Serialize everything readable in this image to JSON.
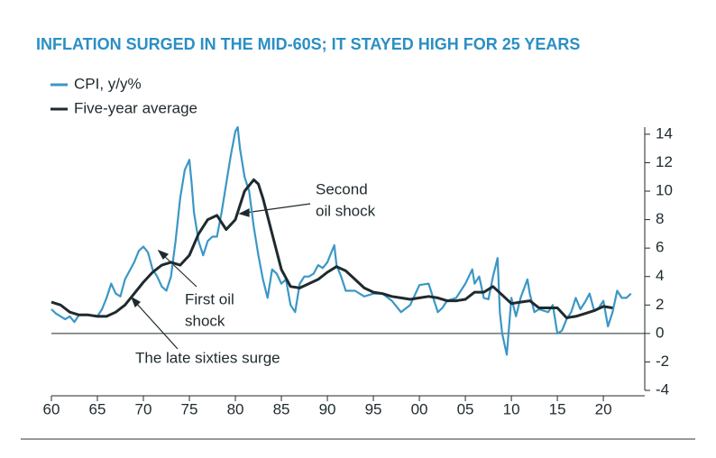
{
  "chart_data": {
    "type": "line",
    "title": "INFLATION SURGED IN THE MID-60S; IT STAYED HIGH FOR 25 YEARS",
    "xlim": [
      1960,
      2024.5
    ],
    "ylim": [
      -4,
      14.5
    ],
    "xticks": [
      {
        "value": 1960,
        "label": "60"
      },
      {
        "value": 1965,
        "label": "65"
      },
      {
        "value": 1970,
        "label": "70"
      },
      {
        "value": 1975,
        "label": "75"
      },
      {
        "value": 1980,
        "label": "80"
      },
      {
        "value": 1985,
        "label": "85"
      },
      {
        "value": 1990,
        "label": "90"
      },
      {
        "value": 1995,
        "label": "95"
      },
      {
        "value": 2000,
        "label": "00"
      },
      {
        "value": 2005,
        "label": "05"
      },
      {
        "value": 2010,
        "label": "10"
      },
      {
        "value": 2015,
        "label": "15"
      },
      {
        "value": 2020,
        "label": "20"
      }
    ],
    "yticks": [
      -4,
      -2,
      0,
      2,
      4,
      6,
      8,
      10,
      12,
      14
    ],
    "series": [
      {
        "name": "CPI, y/y%",
        "color": "#3b97c6",
        "x": [
          1960,
          1960.5,
          1961,
          1961.5,
          1962,
          1962.5,
          1963,
          1964,
          1965,
          1965.5,
          1966,
          1966.5,
          1967,
          1967.5,
          1968,
          1968.5,
          1969,
          1969.5,
          1970,
          1970.5,
          1971,
          1971.5,
          1972,
          1972.5,
          1973,
          1973.5,
          1974,
          1974.5,
          1975,
          1975.25,
          1975.5,
          1976,
          1976.5,
          1977,
          1977.5,
          1978,
          1978.5,
          1979,
          1979.5,
          1980,
          1980.25,
          1980.5,
          1981,
          1981.5,
          1982,
          1982.5,
          1983,
          1983.5,
          1984,
          1984.5,
          1985,
          1985.5,
          1986,
          1986.5,
          1987,
          1987.5,
          1988,
          1988.5,
          1989,
          1989.5,
          1990,
          1990.75,
          1991,
          1991.5,
          1992,
          1993,
          1994,
          1995,
          1996,
          1997,
          1998,
          1999,
          2000,
          2001,
          2001.5,
          2002,
          2002.5,
          2003,
          2004,
          2005,
          2005.75,
          2006,
          2006.5,
          2007,
          2007.5,
          2008,
          2008.5,
          2008.75,
          2009,
          2009.5,
          2010,
          2010.5,
          2011,
          2011.75,
          2012,
          2012.5,
          2013,
          2014,
          2014.5,
          2015,
          2015.5,
          2016,
          2016.5,
          2017,
          2017.5,
          2018,
          2018.5,
          2019,
          2019.5,
          2020,
          2020.5,
          2021,
          2021.5,
          2022,
          2022.5,
          2023
        ],
        "values": [
          1.7,
          1.4,
          1.2,
          1.0,
          1.2,
          0.8,
          1.3,
          1.3,
          1.2,
          1.7,
          2.5,
          3.5,
          2.8,
          2.6,
          3.8,
          4.4,
          5.0,
          5.8,
          6.1,
          5.7,
          4.5,
          4.0,
          3.3,
          3.0,
          4.0,
          6.5,
          9.5,
          11.5,
          12.2,
          10.5,
          8.5,
          6.5,
          5.5,
          6.5,
          6.8,
          6.8,
          8.5,
          10.5,
          12.5,
          14.2,
          14.5,
          13,
          11,
          10,
          7.5,
          5.5,
          3.8,
          2.5,
          4.5,
          4.2,
          3.5,
          3.8,
          2,
          1.5,
          3.5,
          4,
          4,
          4.2,
          4.8,
          4.6,
          5,
          6.2,
          4.8,
          4,
          3,
          3,
          2.6,
          2.8,
          2.8,
          2.3,
          1.5,
          2,
          3.4,
          3.5,
          2.5,
          1.5,
          1.8,
          2.3,
          2.5,
          3.5,
          4.5,
          3.5,
          4,
          2.5,
          2.4,
          4,
          5.3,
          1.5,
          0,
          -1.5,
          2.5,
          1.2,
          2.5,
          3.8,
          2.8,
          1.5,
          1.7,
          1.5,
          2,
          0,
          0.2,
          1,
          1.5,
          2.5,
          1.7,
          2.2,
          2.8,
          1.6,
          1.8,
          2.3,
          0.5,
          1.5,
          3,
          2.5,
          2.5,
          2.8
        ]
      },
      {
        "name": "Five-year average",
        "color": "#1f2a2e",
        "x": [
          1960,
          1961,
          1962,
          1963,
          1964,
          1965,
          1966,
          1967,
          1968,
          1969,
          1970,
          1971,
          1972,
          1973,
          1974,
          1975,
          1976,
          1977,
          1978,
          1979,
          1980,
          1981,
          1982,
          1982.5,
          1983,
          1984,
          1985,
          1986,
          1987,
          1988,
          1989,
          1990,
          1991,
          1992,
          1993,
          1994,
          1995,
          1996,
          1997,
          1998,
          1999,
          2000,
          2001,
          2002,
          2003,
          2004,
          2005,
          2006,
          2007,
          2008,
          2009,
          2010,
          2011,
          2012,
          2013,
          2014,
          2015,
          2016,
          2017,
          2018,
          2019,
          2020,
          2021
        ],
        "values": [
          2.2,
          2.0,
          1.5,
          1.3,
          1.3,
          1.2,
          1.2,
          1.5,
          2.0,
          2.8,
          3.6,
          4.3,
          4.8,
          5.0,
          4.8,
          5.5,
          7,
          8,
          8.3,
          7.3,
          8,
          10,
          10.8,
          10.5,
          9.5,
          7,
          4.5,
          3.3,
          3.2,
          3.5,
          3.8,
          4.3,
          4.7,
          4.4,
          3.8,
          3.2,
          2.9,
          2.8,
          2.6,
          2.5,
          2.4,
          2.5,
          2.6,
          2.5,
          2.3,
          2.3,
          2.4,
          2.9,
          2.9,
          3.3,
          2.7,
          2.1,
          2.2,
          2.3,
          1.8,
          1.8,
          1.8,
          1.1,
          1.2,
          1.4,
          1.6,
          1.9,
          1.8
        ]
      }
    ],
    "annotations": [
      {
        "lines": [
          "Second",
          "oil shock"
        ]
      },
      {
        "lines": [
          "First oil",
          "shock"
        ]
      },
      {
        "lines": [
          "The late sixties surge"
        ]
      }
    ]
  }
}
